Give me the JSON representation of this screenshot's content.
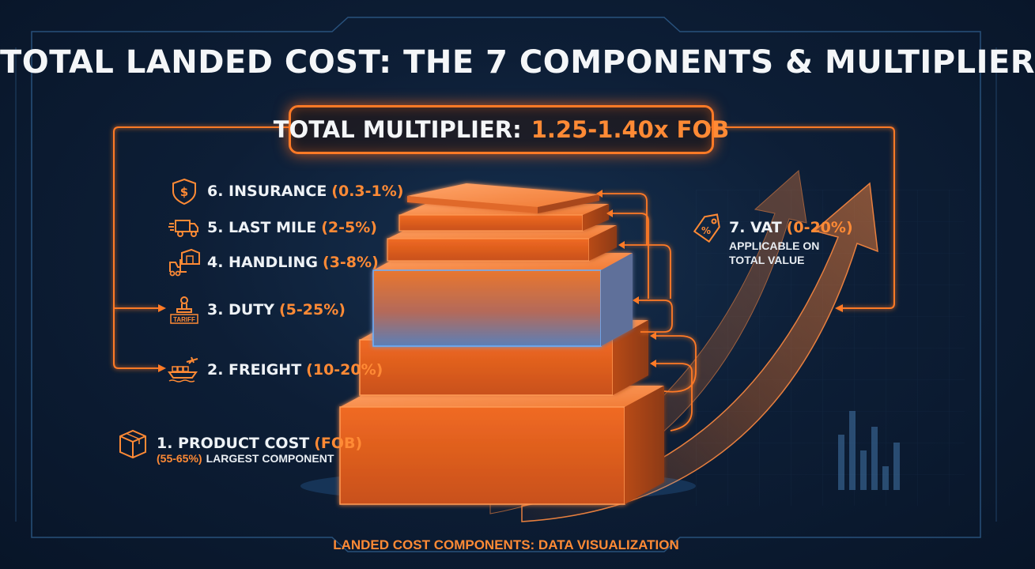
{
  "title": "TOTAL LANDED COST: THE 7 COMPONENTS & MULTIPLIER",
  "multiplier": {
    "label": "TOTAL MULTIPLIER:",
    "value": "1.25-1.40x FOB"
  },
  "components": [
    {
      "label": "6. INSURANCE",
      "range": "(0.3-1%)",
      "icon": "shield-dollar-icon"
    },
    {
      "label": "5. LAST MILE",
      "range": "(2-5%)",
      "icon": "delivery-truck-icon"
    },
    {
      "label": "4. HANDLING",
      "range": "(3-8%)",
      "icon": "forklift-icon"
    },
    {
      "label": "3. DUTY",
      "range": "(5-25%)",
      "icon": "tariff-stamp-icon",
      "icon_text": "TARIFF"
    },
    {
      "label": "2. FREIGHT",
      "range": "(10-20%)",
      "icon": "ship-plane-icon"
    }
  ],
  "product_cost": {
    "label": "1. PRODUCT COST",
    "tag": "(FOB)",
    "range": "(55-65%)",
    "note": "LARGEST COMPONENT",
    "icon": "box-icon"
  },
  "vat": {
    "label": "7. VAT",
    "range": "(0-20%)",
    "note_line1": "APPLICABLE ON",
    "note_line2": "TOTAL VALUE",
    "icon": "price-tag-icon"
  },
  "footer": "LANDED COST COMPONENTS: DATA VISUALIZATION",
  "colors": {
    "accent": "#ff7a26",
    "background": "#0d1e36",
    "text": "#f4f6f8",
    "glow_blue": "#4aa8ff"
  }
}
